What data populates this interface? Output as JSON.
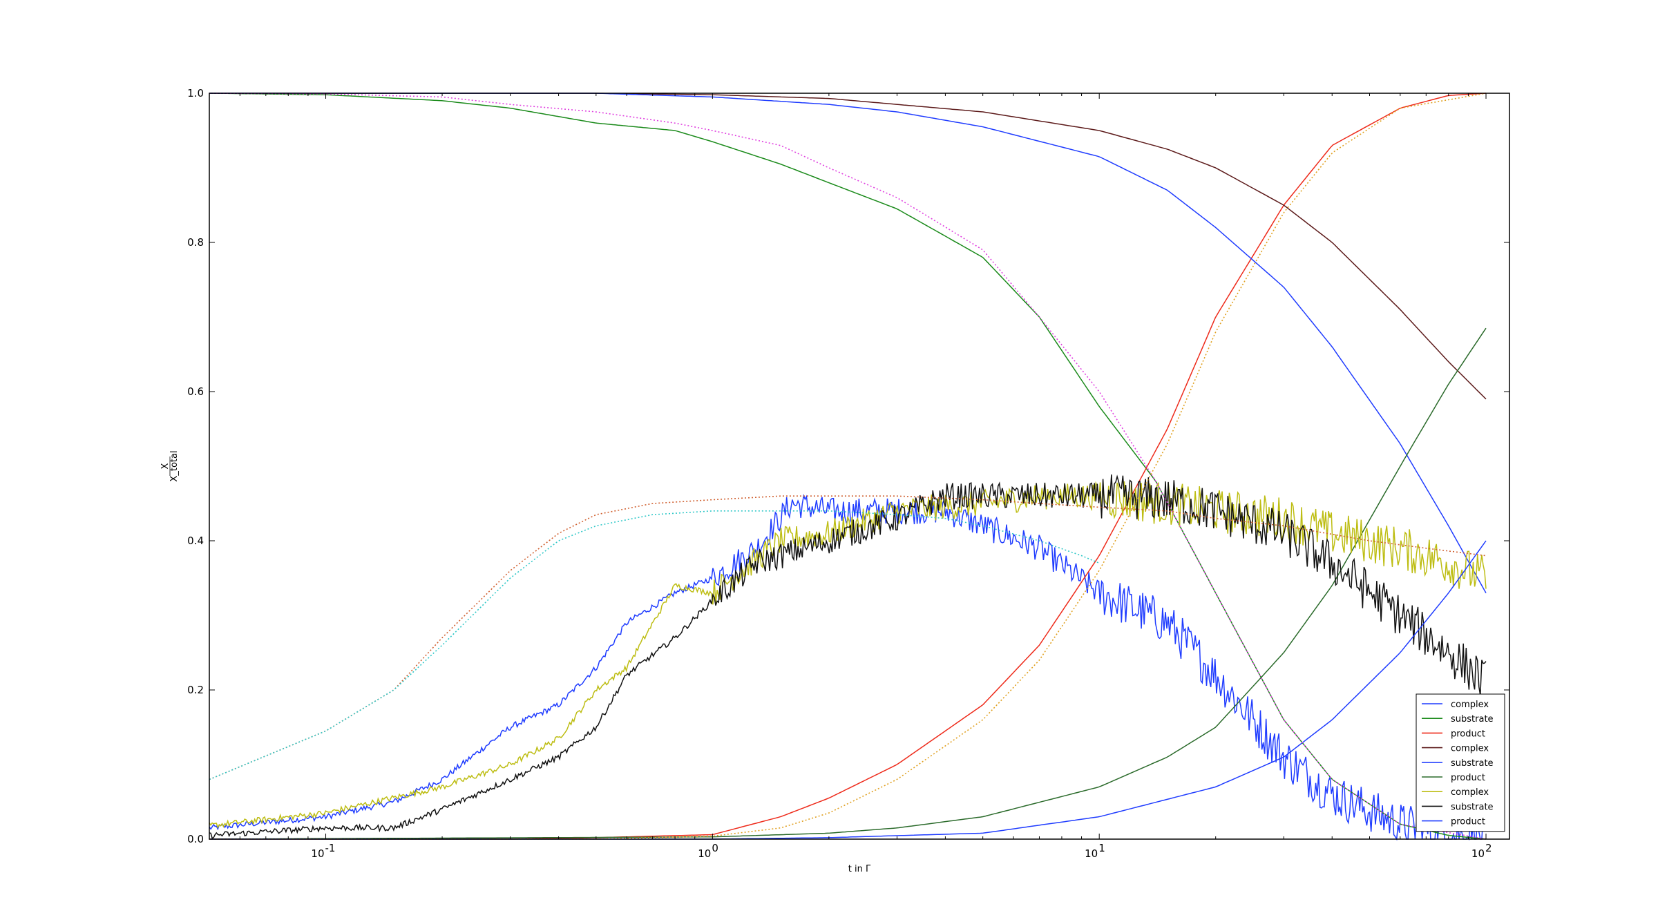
{
  "chart_data": {
    "type": "line",
    "title": "",
    "xlabel": "t in Γ",
    "ylabel": "X/X_total",
    "xscale": "log",
    "xlim": [
      0.05,
      115
    ],
    "ylim": [
      0.0,
      1.0
    ],
    "x_ticks": [
      {
        "value": 0.1,
        "base": "10",
        "exp": "-1"
      },
      {
        "value": 1,
        "base": "10",
        "exp": "0"
      },
      {
        "value": 10,
        "base": "10",
        "exp": "1"
      },
      {
        "value": 100,
        "base": "10",
        "exp": "2"
      }
    ],
    "y_ticks": [
      "0.0",
      "0.2",
      "0.4",
      "0.6",
      "0.8",
      "1.0"
    ],
    "grid": false,
    "legend_position": "bottom-right",
    "series": [
      {
        "name": "complex",
        "color": "#1f3cff",
        "style": "noisy",
        "points": [
          [
            0.05,
            0.015
          ],
          [
            0.1,
            0.03
          ],
          [
            0.15,
            0.05
          ],
          [
            0.2,
            0.08
          ],
          [
            0.3,
            0.15
          ],
          [
            0.4,
            0.18
          ],
          [
            0.5,
            0.23
          ],
          [
            0.6,
            0.29
          ],
          [
            0.8,
            0.33
          ],
          [
            1.0,
            0.35
          ],
          [
            1.3,
            0.39
          ],
          [
            1.6,
            0.45
          ],
          [
            2.0,
            0.44
          ],
          [
            3.0,
            0.44
          ],
          [
            4.0,
            0.44
          ],
          [
            5.0,
            0.42
          ],
          [
            7.0,
            0.39
          ],
          [
            10.0,
            0.33
          ],
          [
            15.0,
            0.29
          ],
          [
            20.0,
            0.22
          ],
          [
            30.0,
            0.11
          ],
          [
            40.0,
            0.06
          ],
          [
            60.0,
            0.02
          ],
          [
            80.0,
            0.005
          ],
          [
            100.0,
            0.0
          ]
        ]
      },
      {
        "name": "substrate",
        "color": "#1a8a1a",
        "style": "smooth",
        "points": [
          [
            0.05,
            1.0
          ],
          [
            0.1,
            0.998
          ],
          [
            0.2,
            0.99
          ],
          [
            0.3,
            0.98
          ],
          [
            0.5,
            0.96
          ],
          [
            0.8,
            0.95
          ],
          [
            1.0,
            0.935
          ],
          [
            1.5,
            0.905
          ],
          [
            2.0,
            0.88
          ],
          [
            3.0,
            0.845
          ],
          [
            5.0,
            0.78
          ],
          [
            7.0,
            0.7
          ],
          [
            10.0,
            0.58
          ],
          [
            14.0,
            0.48
          ],
          [
            20.0,
            0.33
          ],
          [
            30.0,
            0.16
          ],
          [
            40.0,
            0.08
          ],
          [
            60.0,
            0.02
          ],
          [
            80.0,
            0.005
          ],
          [
            100.0,
            0.0
          ]
        ]
      },
      {
        "name": "product",
        "color": "#ee2a1a",
        "style": "smooth",
        "points": [
          [
            0.05,
            0.0
          ],
          [
            0.3,
            0.0
          ],
          [
            0.5,
            0.002
          ],
          [
            1.0,
            0.006
          ],
          [
            1.5,
            0.03
          ],
          [
            2.0,
            0.055
          ],
          [
            3.0,
            0.1
          ],
          [
            5.0,
            0.18
          ],
          [
            7.0,
            0.26
          ],
          [
            10.0,
            0.38
          ],
          [
            15.0,
            0.55
          ],
          [
            20.0,
            0.7
          ],
          [
            30.0,
            0.85
          ],
          [
            40.0,
            0.93
          ],
          [
            60.0,
            0.98
          ],
          [
            80.0,
            0.997
          ],
          [
            100.0,
            1.0
          ]
        ]
      },
      {
        "name": "complex",
        "color": "#5c1a1a",
        "style": "smooth",
        "points": [
          [
            0.05,
            1.0
          ],
          [
            0.5,
            1.0
          ],
          [
            1.0,
            0.998
          ],
          [
            2.0,
            0.993
          ],
          [
            3.0,
            0.985
          ],
          [
            5.0,
            0.975
          ],
          [
            10.0,
            0.95
          ],
          [
            15.0,
            0.925
          ],
          [
            20.0,
            0.9
          ],
          [
            30.0,
            0.85
          ],
          [
            40.0,
            0.8
          ],
          [
            60.0,
            0.71
          ],
          [
            80.0,
            0.64
          ],
          [
            100.0,
            0.59
          ]
        ]
      },
      {
        "name": "substrate",
        "color": "#1f3cff",
        "style": "smooth",
        "points": [
          [
            0.05,
            1.0
          ],
          [
            0.5,
            1.0
          ],
          [
            1.0,
            0.995
          ],
          [
            2.0,
            0.985
          ],
          [
            3.0,
            0.975
          ],
          [
            5.0,
            0.955
          ],
          [
            10.0,
            0.915
          ],
          [
            15.0,
            0.87
          ],
          [
            20.0,
            0.82
          ],
          [
            30.0,
            0.74
          ],
          [
            40.0,
            0.66
          ],
          [
            60.0,
            0.53
          ],
          [
            80.0,
            0.42
          ],
          [
            100.0,
            0.33
          ]
        ]
      },
      {
        "name": "product",
        "color": "#2a6a2a",
        "style": "smooth",
        "points": [
          [
            0.05,
            0.0
          ],
          [
            1.0,
            0.003
          ],
          [
            2.0,
            0.008
          ],
          [
            3.0,
            0.015
          ],
          [
            5.0,
            0.03
          ],
          [
            10.0,
            0.07
          ],
          [
            15.0,
            0.11
          ],
          [
            20.0,
            0.15
          ],
          [
            30.0,
            0.25
          ],
          [
            40.0,
            0.34
          ],
          [
            60.0,
            0.5
          ],
          [
            80.0,
            0.61
          ],
          [
            100.0,
            0.685
          ]
        ]
      },
      {
        "name": "complex",
        "color": "#bdbd12",
        "style": "noisy",
        "points": [
          [
            0.05,
            0.018
          ],
          [
            0.1,
            0.035
          ],
          [
            0.2,
            0.07
          ],
          [
            0.3,
            0.1
          ],
          [
            0.4,
            0.135
          ],
          [
            0.5,
            0.2
          ],
          [
            0.6,
            0.23
          ],
          [
            0.8,
            0.34
          ],
          [
            1.0,
            0.33
          ],
          [
            1.5,
            0.4
          ],
          [
            2.0,
            0.41
          ],
          [
            3.0,
            0.44
          ],
          [
            5.0,
            0.45
          ],
          [
            7.0,
            0.46
          ],
          [
            10.0,
            0.46
          ],
          [
            15.0,
            0.45
          ],
          [
            20.0,
            0.44
          ],
          [
            30.0,
            0.43
          ],
          [
            40.0,
            0.41
          ],
          [
            60.0,
            0.39
          ],
          [
            80.0,
            0.37
          ],
          [
            100.0,
            0.35
          ]
        ]
      },
      {
        "name": "substrate",
        "color": "#111111",
        "style": "noisy",
        "points": [
          [
            0.05,
            0.005
          ],
          [
            0.1,
            0.015
          ],
          [
            0.15,
            0.015
          ],
          [
            0.2,
            0.04
          ],
          [
            0.3,
            0.08
          ],
          [
            0.4,
            0.11
          ],
          [
            0.5,
            0.15
          ],
          [
            0.6,
            0.22
          ],
          [
            0.8,
            0.27
          ],
          [
            1.0,
            0.32
          ],
          [
            1.3,
            0.37
          ],
          [
            2.0,
            0.4
          ],
          [
            3.0,
            0.43
          ],
          [
            4.0,
            0.46
          ],
          [
            5.0,
            0.46
          ],
          [
            7.0,
            0.46
          ],
          [
            10.0,
            0.46
          ],
          [
            15.0,
            0.455
          ],
          [
            20.0,
            0.44
          ],
          [
            30.0,
            0.41
          ],
          [
            40.0,
            0.37
          ],
          [
            60.0,
            0.3
          ],
          [
            80.0,
            0.25
          ],
          [
            100.0,
            0.21
          ]
        ]
      },
      {
        "name": "product",
        "color": "#1f3cff",
        "style": "smooth",
        "points": [
          [
            0.05,
            0.0
          ],
          [
            1.0,
            0.0
          ],
          [
            2.0,
            0.002
          ],
          [
            5.0,
            0.008
          ],
          [
            10.0,
            0.03
          ],
          [
            20.0,
            0.07
          ],
          [
            30.0,
            0.11
          ],
          [
            40.0,
            0.16
          ],
          [
            60.0,
            0.25
          ],
          [
            80.0,
            0.33
          ],
          [
            100.0,
            0.4
          ]
        ]
      },
      {
        "name": "",
        "color": "#e040e0",
        "style": "dotted",
        "points": [
          [
            0.05,
            1.0
          ],
          [
            0.1,
            0.999
          ],
          [
            0.2,
            0.995
          ],
          [
            0.3,
            0.985
          ],
          [
            0.5,
            0.975
          ],
          [
            0.8,
            0.96
          ],
          [
            1.0,
            0.95
          ],
          [
            1.5,
            0.93
          ],
          [
            2.0,
            0.9
          ],
          [
            3.0,
            0.86
          ],
          [
            5.0,
            0.79
          ],
          [
            7.0,
            0.7
          ],
          [
            10.0,
            0.6
          ],
          [
            14.0,
            0.48
          ],
          [
            20.0,
            0.33
          ],
          [
            30.0,
            0.16
          ],
          [
            40.0,
            0.08
          ],
          [
            60.0,
            0.02
          ],
          [
            100.0,
            0.0
          ]
        ]
      },
      {
        "name": "",
        "color": "#e0a020",
        "style": "dotted",
        "points": [
          [
            0.05,
            0.0
          ],
          [
            0.5,
            0.0
          ],
          [
            1.0,
            0.004
          ],
          [
            1.5,
            0.015
          ],
          [
            2.0,
            0.035
          ],
          [
            3.0,
            0.08
          ],
          [
            5.0,
            0.16
          ],
          [
            7.0,
            0.24
          ],
          [
            10.0,
            0.36
          ],
          [
            15.0,
            0.53
          ],
          [
            20.0,
            0.68
          ],
          [
            30.0,
            0.84
          ],
          [
            40.0,
            0.92
          ],
          [
            60.0,
            0.98
          ],
          [
            100.0,
            1.0
          ]
        ]
      },
      {
        "name": "",
        "color": "#d06030",
        "style": "dotted",
        "points": [
          [
            0.05,
            0.08
          ],
          [
            0.1,
            0.145
          ],
          [
            0.15,
            0.2
          ],
          [
            0.2,
            0.27
          ],
          [
            0.3,
            0.36
          ],
          [
            0.4,
            0.41
          ],
          [
            0.5,
            0.435
          ],
          [
            0.7,
            0.45
          ],
          [
            1.0,
            0.455
          ],
          [
            1.5,
            0.46
          ],
          [
            2.0,
            0.46
          ],
          [
            3.0,
            0.46
          ],
          [
            5.0,
            0.455
          ],
          [
            7.0,
            0.45
          ],
          [
            10.0,
            0.445
          ],
          [
            15.0,
            0.44
          ],
          [
            20.0,
            0.43
          ],
          [
            30.0,
            0.42
          ],
          [
            50.0,
            0.4
          ],
          [
            70.0,
            0.39
          ],
          [
            100.0,
            0.38
          ]
        ]
      },
      {
        "name": "",
        "color": "#30c8c8",
        "style": "dotted",
        "points": [
          [
            0.05,
            0.08
          ],
          [
            0.1,
            0.145
          ],
          [
            0.15,
            0.2
          ],
          [
            0.2,
            0.26
          ],
          [
            0.3,
            0.35
          ],
          [
            0.4,
            0.4
          ],
          [
            0.5,
            0.42
          ],
          [
            0.7,
            0.435
          ],
          [
            1.0,
            0.44
          ],
          [
            1.5,
            0.44
          ],
          [
            2.0,
            0.44
          ],
          [
            3.0,
            0.435
          ],
          [
            4.0,
            0.43
          ],
          [
            5.0,
            0.42
          ],
          [
            7.0,
            0.4
          ],
          [
            9.0,
            0.38
          ],
          [
            10.0,
            0.37
          ]
        ]
      }
    ]
  }
}
